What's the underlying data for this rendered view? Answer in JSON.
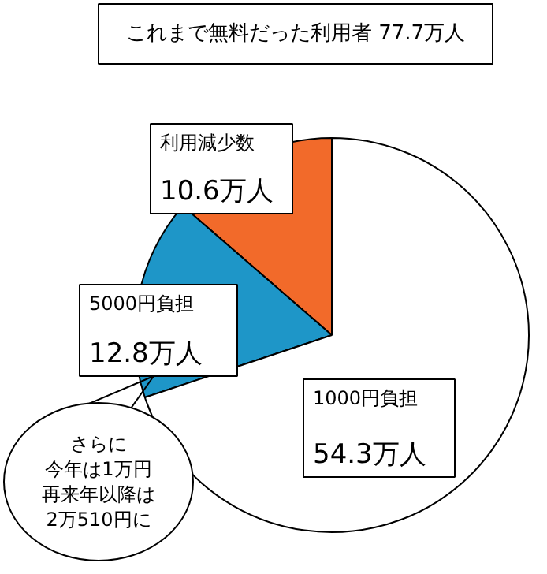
{
  "chart_data": {
    "type": "pie",
    "title": "これまで無料だった利用者 77.7万人",
    "categories": [
      "利用減少数",
      "5000円負担",
      "1000円負担"
    ],
    "values": [
      10.6,
      12.8,
      54.3
    ],
    "colors": [
      "#f26a2a",
      "#1e96c8",
      "#ffffff"
    ],
    "value_labels": [
      "10.6万人",
      "12.8万人",
      "54.3万人"
    ],
    "annotations": [
      "さらに",
      "今年は1万円",
      "再来年以降は",
      "2万510円に"
    ]
  }
}
